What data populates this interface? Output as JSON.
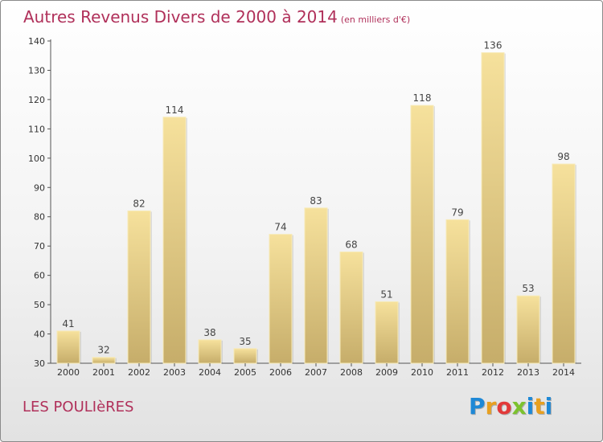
{
  "chart_data": {
    "type": "bar",
    "title": "Autres Revenus Divers de 2000 à 2014",
    "subtitle": "(en milliers d'€)",
    "categories": [
      "2000",
      "2001",
      "2002",
      "2003",
      "2004",
      "2005",
      "2006",
      "2007",
      "2008",
      "2009",
      "2010",
      "2011",
      "2012",
      "2013",
      "2014"
    ],
    "values": [
      41,
      32,
      82,
      114,
      38,
      35,
      74,
      83,
      68,
      51,
      118,
      79,
      136,
      53,
      98
    ],
    "ylim": [
      30,
      140
    ],
    "yticks": [
      30,
      40,
      50,
      60,
      70,
      80,
      90,
      100,
      110,
      120,
      130,
      140
    ],
    "xlabel": "",
    "ylabel": "",
    "grid": false,
    "bar_color": "#e8d18c",
    "label_color": "#444444"
  },
  "footer": {
    "commune": "LES POULIèRES",
    "logo_letters": [
      "P",
      "r",
      "o",
      "x",
      "i",
      "t",
      "i"
    ],
    "logo_colors": [
      "#1e88d6",
      "#e8a020",
      "#e23a3a",
      "#7cc22e",
      "#1e88d6",
      "#e8a020",
      "#1e88d6"
    ]
  }
}
